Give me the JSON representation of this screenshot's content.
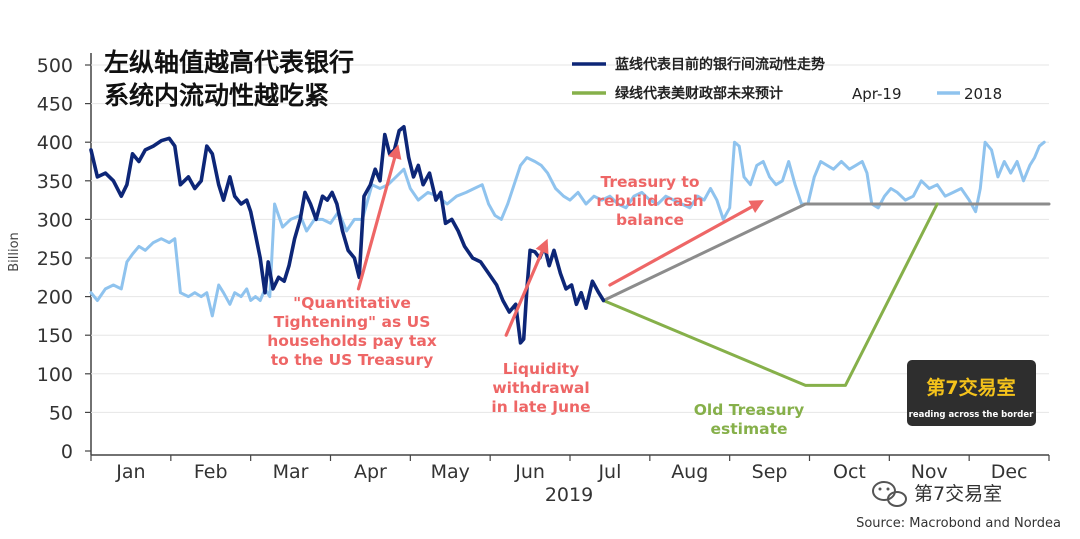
{
  "chart_data": {
    "type": "line",
    "title_cn": [
      "左纵轴值越高代表银行",
      "系统内流动性越吃紧"
    ],
    "ylabel": "Billion",
    "ylim": [
      0,
      500
    ],
    "yticks": [
      0,
      50,
      100,
      150,
      200,
      250,
      300,
      350,
      400,
      450,
      500
    ],
    "xlim": [
      0,
      12
    ],
    "months": [
      "Jan",
      "Feb",
      "Mar",
      "Apr",
      "May",
      "Jun",
      "Jul",
      "Aug",
      "Sep",
      "Oct",
      "Nov",
      "Dec"
    ],
    "year_label": "2019",
    "series": [
      {
        "name": "Apr-19",
        "legend_label": "蓝线代表目前的银行间流动性走势",
        "color": "#0d2677",
        "points": [
          [
            0.0,
            390
          ],
          [
            0.08,
            355
          ],
          [
            0.18,
            360
          ],
          [
            0.28,
            350
          ],
          [
            0.38,
            330
          ],
          [
            0.45,
            345
          ],
          [
            0.52,
            385
          ],
          [
            0.6,
            375
          ],
          [
            0.68,
            390
          ],
          [
            0.78,
            395
          ],
          [
            0.88,
            402
          ],
          [
            0.98,
            405
          ],
          [
            1.05,
            395
          ],
          [
            1.12,
            345
          ],
          [
            1.22,
            355
          ],
          [
            1.3,
            340
          ],
          [
            1.38,
            350
          ],
          [
            1.45,
            395
          ],
          [
            1.52,
            385
          ],
          [
            1.6,
            345
          ],
          [
            1.66,
            325
          ],
          [
            1.74,
            355
          ],
          [
            1.8,
            330
          ],
          [
            1.88,
            320
          ],
          [
            1.95,
            325
          ],
          [
            2.0,
            310
          ],
          [
            2.06,
            280
          ],
          [
            2.12,
            250
          ],
          [
            2.18,
            205
          ],
          [
            2.22,
            245
          ],
          [
            2.28,
            210
          ],
          [
            2.35,
            225
          ],
          [
            2.42,
            220
          ],
          [
            2.48,
            240
          ],
          [
            2.55,
            275
          ],
          [
            2.62,
            300
          ],
          [
            2.68,
            335
          ],
          [
            2.75,
            320
          ],
          [
            2.82,
            300
          ],
          [
            2.9,
            330
          ],
          [
            2.96,
            325
          ],
          [
            3.02,
            335
          ],
          [
            3.08,
            320
          ],
          [
            3.15,
            285
          ],
          [
            3.22,
            260
          ],
          [
            3.3,
            250
          ],
          [
            3.36,
            225
          ],
          [
            3.42,
            330
          ],
          [
            3.5,
            345
          ],
          [
            3.56,
            365
          ],
          [
            3.62,
            350
          ],
          [
            3.68,
            410
          ],
          [
            3.74,
            385
          ],
          [
            3.8,
            390
          ],
          [
            3.86,
            415
          ],
          [
            3.92,
            420
          ],
          [
            3.98,
            380
          ],
          [
            4.04,
            355
          ],
          [
            4.1,
            370
          ],
          [
            4.16,
            345
          ],
          [
            4.24,
            360
          ],
          [
            4.32,
            325
          ],
          [
            4.38,
            335
          ],
          [
            4.44,
            295
          ],
          [
            4.52,
            300
          ],
          [
            4.6,
            285
          ],
          [
            4.68,
            265
          ],
          [
            4.78,
            250
          ],
          [
            4.88,
            245
          ],
          [
            4.98,
            230
          ],
          [
            5.08,
            215
          ],
          [
            5.16,
            195
          ],
          [
            5.24,
            180
          ],
          [
            5.32,
            190
          ],
          [
            5.38,
            140
          ],
          [
            5.42,
            145
          ],
          [
            5.46,
            210
          ],
          [
            5.5,
            260
          ],
          [
            5.56,
            258
          ],
          [
            5.62,
            250
          ],
          [
            5.68,
            265
          ],
          [
            5.74,
            240
          ],
          [
            5.8,
            260
          ],
          [
            5.88,
            230
          ],
          [
            5.95,
            210
          ],
          [
            6.02,
            215
          ],
          [
            6.08,
            190
          ],
          [
            6.14,
            205
          ],
          [
            6.2,
            185
          ],
          [
            6.28,
            220
          ],
          [
            6.36,
            205
          ],
          [
            6.42,
            195
          ]
        ]
      },
      {
        "name": "2018",
        "color": "#8fc3ee",
        "points": [
          [
            0.0,
            205
          ],
          [
            0.08,
            195
          ],
          [
            0.18,
            210
          ],
          [
            0.28,
            215
          ],
          [
            0.38,
            210
          ],
          [
            0.45,
            245
          ],
          [
            0.52,
            255
          ],
          [
            0.6,
            265
          ],
          [
            0.68,
            260
          ],
          [
            0.78,
            270
          ],
          [
            0.88,
            275
          ],
          [
            0.98,
            270
          ],
          [
            1.05,
            275
          ],
          [
            1.12,
            205
          ],
          [
            1.22,
            200
          ],
          [
            1.3,
            205
          ],
          [
            1.38,
            200
          ],
          [
            1.45,
            205
          ],
          [
            1.52,
            175
          ],
          [
            1.6,
            215
          ],
          [
            1.66,
            205
          ],
          [
            1.74,
            190
          ],
          [
            1.8,
            205
          ],
          [
            1.88,
            200
          ],
          [
            1.95,
            210
          ],
          [
            2.0,
            195
          ],
          [
            2.06,
            200
          ],
          [
            2.12,
            195
          ],
          [
            2.18,
            210
          ],
          [
            2.24,
            200
          ],
          [
            2.3,
            320
          ],
          [
            2.4,
            290
          ],
          [
            2.5,
            300
          ],
          [
            2.62,
            305
          ],
          [
            2.7,
            285
          ],
          [
            2.8,
            300
          ],
          [
            2.9,
            300
          ],
          [
            3.0,
            295
          ],
          [
            3.1,
            310
          ],
          [
            3.2,
            285
          ],
          [
            3.3,
            300
          ],
          [
            3.4,
            300
          ],
          [
            3.52,
            345
          ],
          [
            3.62,
            340
          ],
          [
            3.72,
            345
          ],
          [
            3.82,
            355
          ],
          [
            3.92,
            365
          ],
          [
            4.0,
            340
          ],
          [
            4.1,
            325
          ],
          [
            4.22,
            335
          ],
          [
            4.34,
            330
          ],
          [
            4.46,
            320
          ],
          [
            4.58,
            330
          ],
          [
            4.7,
            335
          ],
          [
            4.8,
            340
          ],
          [
            4.9,
            345
          ],
          [
            4.98,
            320
          ],
          [
            5.06,
            305
          ],
          [
            5.14,
            300
          ],
          [
            5.22,
            320
          ],
          [
            5.3,
            345
          ],
          [
            5.38,
            370
          ],
          [
            5.46,
            380
          ],
          [
            5.56,
            375
          ],
          [
            5.64,
            370
          ],
          [
            5.72,
            360
          ],
          [
            5.82,
            340
          ],
          [
            5.92,
            330
          ],
          [
            6.0,
            325
          ],
          [
            6.1,
            335
          ],
          [
            6.2,
            320
          ],
          [
            6.3,
            330
          ],
          [
            6.4,
            325
          ],
          [
            6.5,
            330
          ],
          [
            6.6,
            320
          ],
          [
            6.7,
            315
          ],
          [
            6.8,
            330
          ],
          [
            6.9,
            335
          ],
          [
            7.0,
            325
          ],
          [
            7.1,
            320
          ],
          [
            7.2,
            330
          ],
          [
            7.3,
            325
          ],
          [
            7.4,
            320
          ],
          [
            7.5,
            315
          ],
          [
            7.6,
            330
          ],
          [
            7.68,
            325
          ],
          [
            7.76,
            340
          ],
          [
            7.84,
            325
          ],
          [
            7.92,
            300
          ],
          [
            8.0,
            315
          ],
          [
            8.06,
            400
          ],
          [
            8.12,
            395
          ],
          [
            8.18,
            355
          ],
          [
            8.26,
            345
          ],
          [
            8.34,
            370
          ],
          [
            8.42,
            375
          ],
          [
            8.5,
            355
          ],
          [
            8.58,
            345
          ],
          [
            8.66,
            350
          ],
          [
            8.74,
            375
          ],
          [
            8.82,
            345
          ],
          [
            8.9,
            320
          ],
          [
            8.98,
            320
          ],
          [
            9.06,
            355
          ],
          [
            9.14,
            375
          ],
          [
            9.22,
            370
          ],
          [
            9.3,
            365
          ],
          [
            9.4,
            375
          ],
          [
            9.5,
            365
          ],
          [
            9.58,
            370
          ],
          [
            9.66,
            375
          ],
          [
            9.72,
            360
          ],
          [
            9.78,
            320
          ],
          [
            9.86,
            315
          ],
          [
            9.94,
            330
          ],
          [
            10.02,
            340
          ],
          [
            10.1,
            335
          ],
          [
            10.2,
            325
          ],
          [
            10.3,
            330
          ],
          [
            10.4,
            350
          ],
          [
            10.5,
            340
          ],
          [
            10.6,
            345
          ],
          [
            10.7,
            330
          ],
          [
            10.8,
            335
          ],
          [
            10.9,
            340
          ],
          [
            11.0,
            325
          ],
          [
            11.08,
            310
          ],
          [
            11.14,
            340
          ],
          [
            11.2,
            400
          ],
          [
            11.28,
            390
          ],
          [
            11.36,
            355
          ],
          [
            11.44,
            375
          ],
          [
            11.52,
            360
          ],
          [
            11.6,
            375
          ],
          [
            11.68,
            350
          ],
          [
            11.76,
            370
          ],
          [
            11.82,
            380
          ],
          [
            11.88,
            395
          ],
          [
            11.94,
            400
          ]
        ]
      },
      {
        "name": "Old Treasury estimate",
        "legend_label": "绿线代表美财政部未来预计",
        "color": "#86b04a",
        "points": [
          [
            6.42,
            195
          ],
          [
            8.95,
            85
          ],
          [
            9.45,
            85
          ],
          [
            10.6,
            320
          ]
        ]
      },
      {
        "name": "",
        "color": "#8c8c8c",
        "points": [
          [
            6.42,
            195
          ],
          [
            8.95,
            320
          ],
          [
            12,
            320
          ]
        ]
      }
    ],
    "annotations": [
      {
        "lines": [
          "\"Quantitative",
          "Tightening\" as US",
          "households pay tax",
          "to the US Treasury"
        ],
        "color": "#ee6666",
        "arrow_from": [
          3.35,
          210
        ],
        "arrow_to": [
          3.85,
          397
        ]
      },
      {
        "lines": [
          "Liquidity",
          "withdrawal",
          "in late June"
        ],
        "color": "#ee6666",
        "arrow_from": [
          5.2,
          150
        ],
        "arrow_to": [
          5.72,
          275
        ]
      },
      {
        "lines": [
          "Treasury to",
          "rebuild cash",
          "balance"
        ],
        "color": "#ee6666",
        "arrow_from": [
          6.5,
          215
        ],
        "arrow_to": [
          8.43,
          325
        ]
      },
      {
        "lines": [
          "Old Treasury",
          "estimate"
        ],
        "color": "#86b04a"
      }
    ],
    "legend": {
      "position": "top-right"
    },
    "source": "Source: Macrobond and Nordea",
    "watermark": {
      "logo_main": "第7交易室",
      "logo_sub": "reading across the border",
      "wechat": "第7交易室"
    }
  }
}
